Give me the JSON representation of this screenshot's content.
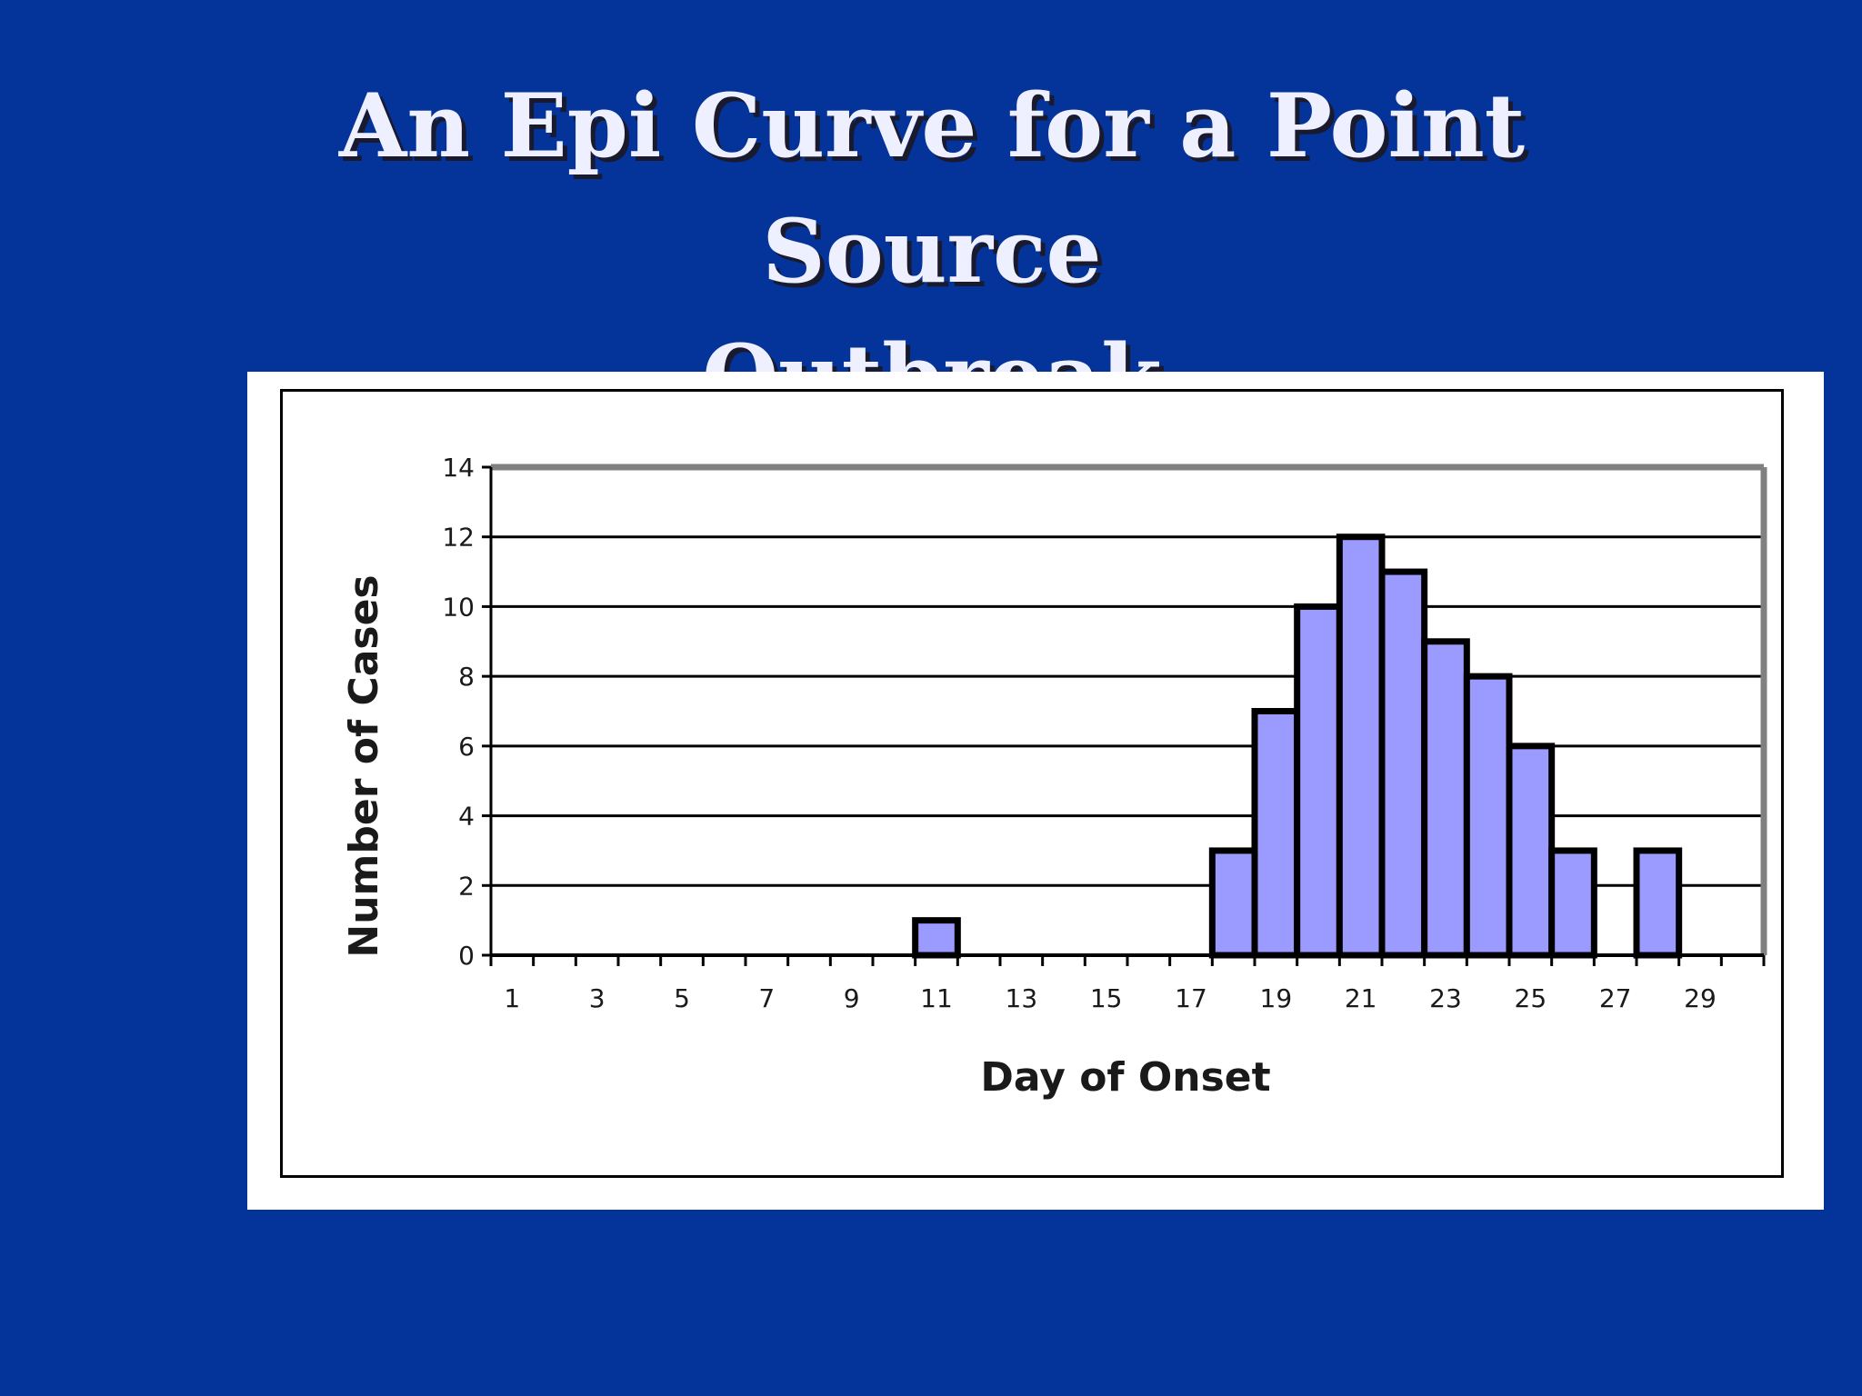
{
  "slide": {
    "title_line1": "An Epi Curve for a Point Source",
    "title_line2": "Outbreak"
  },
  "colors": {
    "background": "#04339a",
    "title_text": "#eef0ff",
    "bar_fill": "#9b9bff",
    "bar_stroke": "#000000",
    "plot_border": "#808080"
  },
  "chart_data": {
    "type": "bar",
    "title": "",
    "xlabel": "Day of Onset",
    "ylabel": "Number of Cases",
    "ylim": [
      0,
      14
    ],
    "yticks": [
      0,
      2,
      4,
      6,
      8,
      10,
      12,
      14
    ],
    "xlim": [
      0.5,
      30.5
    ],
    "xtick_labels": [
      1,
      3,
      5,
      7,
      9,
      11,
      13,
      15,
      17,
      19,
      21,
      23,
      25,
      27,
      29
    ],
    "grid": true,
    "legend": "none",
    "categories": [
      11,
      18,
      19,
      20,
      21,
      22,
      23,
      24,
      25,
      26,
      28
    ],
    "values": [
      1,
      3,
      7,
      10,
      12,
      11,
      9,
      8,
      6,
      3,
      3
    ]
  }
}
